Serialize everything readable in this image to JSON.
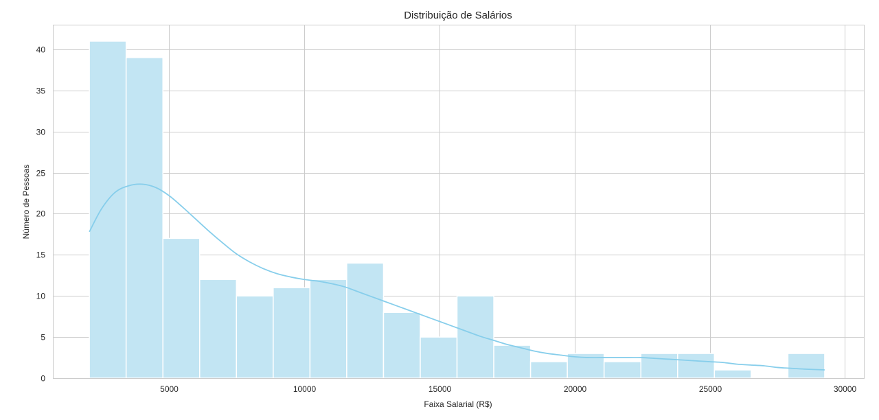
{
  "chart_data": {
    "type": "bar",
    "title": "Distribuição de Salários",
    "xlabel": "Faixa Salarial (R$)",
    "ylabel": "Número de Pessoas",
    "xlim": [
      700,
      30700
    ],
    "ylim": [
      0,
      43
    ],
    "xticks": [
      5000,
      10000,
      15000,
      20000,
      25000,
      30000
    ],
    "yticks": [
      0,
      5,
      10,
      15,
      20,
      25,
      30,
      35,
      40
    ],
    "grid": true,
    "bins": [
      {
        "start": 2050,
        "end": 3410,
        "count": 41
      },
      {
        "start": 3410,
        "end": 4770,
        "count": 39
      },
      {
        "start": 4770,
        "end": 6130,
        "count": 17
      },
      {
        "start": 6130,
        "end": 7490,
        "count": 12
      },
      {
        "start": 7490,
        "end": 8850,
        "count": 10
      },
      {
        "start": 8850,
        "end": 10210,
        "count": 11
      },
      {
        "start": 10210,
        "end": 11570,
        "count": 12
      },
      {
        "start": 11570,
        "end": 12930,
        "count": 14
      },
      {
        "start": 12930,
        "end": 14290,
        "count": 8
      },
      {
        "start": 14290,
        "end": 15650,
        "count": 5
      },
      {
        "start": 15650,
        "end": 17010,
        "count": 10
      },
      {
        "start": 17010,
        "end": 18370,
        "count": 4
      },
      {
        "start": 18370,
        "end": 19730,
        "count": 2
      },
      {
        "start": 19730,
        "end": 21090,
        "count": 3
      },
      {
        "start": 21090,
        "end": 22450,
        "count": 2
      },
      {
        "start": 22450,
        "end": 23810,
        "count": 3
      },
      {
        "start": 23810,
        "end": 25170,
        "count": 3
      },
      {
        "start": 25170,
        "end": 26530,
        "count": 1
      },
      {
        "start": 26530,
        "end": 27890,
        "count": 0
      },
      {
        "start": 27890,
        "end": 29250,
        "count": 3
      }
    ],
    "kde": {
      "x": [
        2050,
        2500,
        3000,
        3500,
        4000,
        4500,
        5000,
        5500,
        6000,
        6500,
        7000,
        7500,
        8000,
        8500,
        9000,
        9500,
        10000,
        10500,
        11000,
        11500,
        12000,
        12500,
        13000,
        13500,
        14000,
        14500,
        15000,
        15500,
        16000,
        16500,
        17000,
        17500,
        18000,
        18500,
        19000,
        19500,
        20000,
        20500,
        21000,
        21500,
        22000,
        22500,
        23000,
        23500,
        24000,
        24500,
        25000,
        25500,
        26000,
        26500,
        27000,
        27500,
        28000,
        28500,
        29250
      ],
      "y": [
        17.8,
        20.6,
        22.6,
        23.4,
        23.6,
        23.2,
        22.2,
        20.8,
        19.3,
        17.8,
        16.4,
        15.1,
        14.1,
        13.3,
        12.7,
        12.3,
        12.0,
        11.8,
        11.5,
        11.1,
        10.5,
        9.9,
        9.3,
        8.7,
        8.1,
        7.5,
        6.9,
        6.3,
        5.7,
        5.1,
        4.6,
        4.1,
        3.7,
        3.3,
        3.0,
        2.8,
        2.6,
        2.5,
        2.5,
        2.5,
        2.5,
        2.5,
        2.4,
        2.3,
        2.2,
        2.1,
        2.0,
        1.9,
        1.7,
        1.6,
        1.5,
        1.3,
        1.2,
        1.1,
        1.0
      ]
    },
    "colors": {
      "bar": "#c2e5f3",
      "kde": "#87ceeb"
    }
  }
}
